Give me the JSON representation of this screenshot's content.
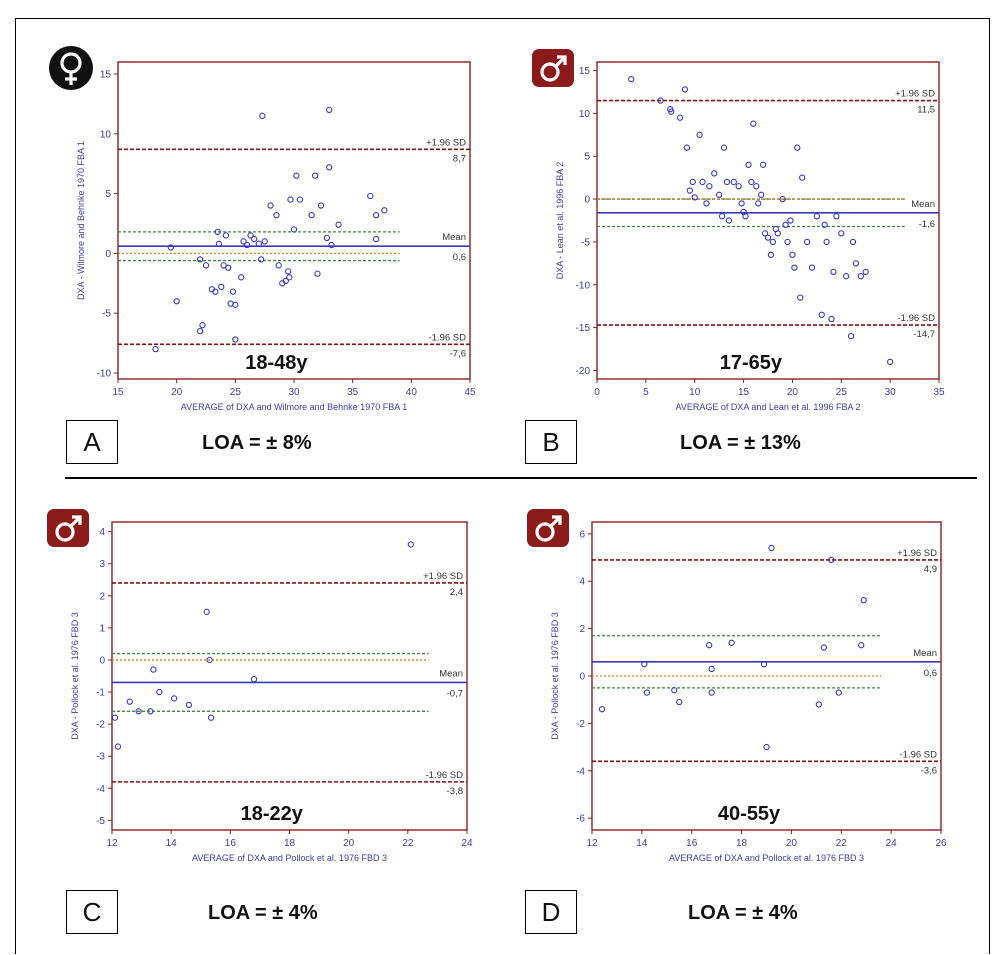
{
  "panels": [
    {
      "id": "A",
      "letter": "A",
      "loa": "LOA = ± 8%",
      "age": "18-48y",
      "sex_icon": "female-symbol-icon",
      "xlabel": "AVERAGE of DXA and Wilmore and Behnke 1970 FBA 1",
      "ylabel": "DXA - Wilmore and Behnke 1970 FBA 1",
      "xlim": [
        15,
        45
      ],
      "ylim": [
        -10.5,
        16
      ],
      "xticks": [
        15,
        20,
        25,
        30,
        35,
        40,
        45
      ],
      "yticks": [
        -10,
        -5,
        0,
        5,
        10,
        15
      ],
      "mean": 0.6,
      "upper": 8.7,
      "lower": -7.6,
      "upper_label": "+1.96 SD",
      "mean_label": "Mean",
      "lower_label": "-1.96 SD",
      "upper_value": "8,7",
      "mean_value": "0,6",
      "lower_value": "-7,6",
      "ci_upper": 1.8,
      "ci_lower": -0.6,
      "line_xmax": 39,
      "points": [
        [
          18.2,
          -8.0
        ],
        [
          19.5,
          0.5
        ],
        [
          20.0,
          -4.0
        ],
        [
          22.0,
          -6.5
        ],
        [
          22.2,
          -6.0
        ],
        [
          22.5,
          -1.0
        ],
        [
          22.0,
          -0.5
        ],
        [
          23.0,
          -3.0
        ],
        [
          23.3,
          -3.2
        ],
        [
          23.5,
          1.8
        ],
        [
          23.6,
          0.8
        ],
        [
          23.8,
          -2.8
        ],
        [
          24.0,
          -1.0
        ],
        [
          24.2,
          1.5
        ],
        [
          24.4,
          -1.2
        ],
        [
          24.6,
          -4.2
        ],
        [
          24.8,
          -3.2
        ],
        [
          25.0,
          -4.3
        ],
        [
          25.0,
          -7.2
        ],
        [
          25.5,
          -2.0
        ],
        [
          25.7,
          1.0
        ],
        [
          26.0,
          0.7
        ],
        [
          26.3,
          1.5
        ],
        [
          26.6,
          1.2
        ],
        [
          27.0,
          0.8
        ],
        [
          27.2,
          -0.5
        ],
        [
          27.3,
          11.5
        ],
        [
          27.5,
          1.0
        ],
        [
          28.0,
          4.0
        ],
        [
          28.5,
          3.2
        ],
        [
          28.7,
          -1.0
        ],
        [
          29.0,
          -2.5
        ],
        [
          29.3,
          -2.3
        ],
        [
          29.5,
          -1.5
        ],
        [
          29.6,
          -2.0
        ],
        [
          29.7,
          4.5
        ],
        [
          30.0,
          2.0
        ],
        [
          30.2,
          6.5
        ],
        [
          30.5,
          4.5
        ],
        [
          31.5,
          3.2
        ],
        [
          31.8,
          6.5
        ],
        [
          32.0,
          -1.7
        ],
        [
          32.3,
          4.0
        ],
        [
          32.8,
          1.3
        ],
        [
          33.0,
          12.0
        ],
        [
          33.0,
          7.2
        ],
        [
          33.2,
          0.7
        ],
        [
          33.8,
          2.4
        ],
        [
          36.5,
          4.8
        ],
        [
          37.0,
          3.2
        ],
        [
          37.7,
          3.6
        ],
        [
          37.0,
          1.2
        ]
      ]
    },
    {
      "id": "B",
      "letter": "B",
      "loa": "LOA = ± 13%",
      "age": "17-65y",
      "sex_icon": "male-symbol-icon",
      "xlabel": "AVERAGE of DXA and Lean et al. 1996 FBA 2",
      "ylabel": "DXA - Lean et al. 1996 FBA 2",
      "xlim": [
        0,
        35
      ],
      "ylim": [
        -21,
        16
      ],
      "xticks": [
        0,
        5,
        10,
        15,
        20,
        25,
        30,
        35
      ],
      "yticks": [
        -20,
        -15,
        -10,
        -5,
        0,
        5,
        10,
        15
      ],
      "mean": -1.6,
      "upper": 11.5,
      "lower": -14.7,
      "upper_label": "+1.96 SD",
      "mean_label": "Mean",
      "lower_label": "-1.96 SD",
      "upper_value": "11,5",
      "mean_value": "-1,6",
      "lower_value": "-14,7",
      "ci_upper": 0.0,
      "ci_lower": -3.2,
      "line_xmax": 31.5,
      "points": [
        [
          3.5,
          14.0
        ],
        [
          6.5,
          11.5
        ],
        [
          7.5,
          10.5
        ],
        [
          7.6,
          10.2
        ],
        [
          8.5,
          9.5
        ],
        [
          9.0,
          12.8
        ],
        [
          9.2,
          6.0
        ],
        [
          9.5,
          1.0
        ],
        [
          9.8,
          2.0
        ],
        [
          10.0,
          0.2
        ],
        [
          10.5,
          7.5
        ],
        [
          10.8,
          2.0
        ],
        [
          11.2,
          -0.5
        ],
        [
          11.5,
          1.5
        ],
        [
          12.0,
          3.0
        ],
        [
          12.5,
          0.5
        ],
        [
          12.8,
          -2.0
        ],
        [
          13.0,
          6.0
        ],
        [
          13.3,
          2.0
        ],
        [
          13.5,
          -2.5
        ],
        [
          14.0,
          2.0
        ],
        [
          14.5,
          1.5
        ],
        [
          14.8,
          -0.5
        ],
        [
          15.0,
          -1.5
        ],
        [
          15.2,
          -2.0
        ],
        [
          15.5,
          4.0
        ],
        [
          15.8,
          2.0
        ],
        [
          16.0,
          8.8
        ],
        [
          16.3,
          1.5
        ],
        [
          16.5,
          -0.5
        ],
        [
          16.8,
          0.5
        ],
        [
          17.0,
          4.0
        ],
        [
          17.2,
          -4.0
        ],
        [
          17.5,
          -4.5
        ],
        [
          17.8,
          -6.5
        ],
        [
          18.0,
          -5.0
        ],
        [
          18.3,
          -3.5
        ],
        [
          18.5,
          -4.0
        ],
        [
          19.0,
          0.0
        ],
        [
          19.3,
          -3.0
        ],
        [
          19.5,
          -5.0
        ],
        [
          19.8,
          -2.5
        ],
        [
          20.0,
          -6.5
        ],
        [
          20.2,
          -8.0
        ],
        [
          20.5,
          6.0
        ],
        [
          20.8,
          -11.5
        ],
        [
          21.0,
          2.5
        ],
        [
          21.5,
          -5.0
        ],
        [
          22.0,
          -8.0
        ],
        [
          22.5,
          -2.0
        ],
        [
          23.0,
          -13.5
        ],
        [
          23.3,
          -3.0
        ],
        [
          23.5,
          -5.0
        ],
        [
          24.0,
          -14.0
        ],
        [
          24.2,
          -8.5
        ],
        [
          24.5,
          -2.0
        ],
        [
          25.0,
          -4.0
        ],
        [
          25.5,
          -9.0
        ],
        [
          26.0,
          -16.0
        ],
        [
          26.2,
          -5.0
        ],
        [
          26.5,
          -7.5
        ],
        [
          27.0,
          -9.0
        ],
        [
          27.5,
          -8.5
        ],
        [
          30.0,
          -19.0
        ]
      ]
    },
    {
      "id": "C",
      "letter": "C",
      "loa": "LOA = ± 4%",
      "age": "18-22y",
      "sex_icon": "male-symbol-icon",
      "xlabel": "AVERAGE of DXA and Pollock et al. 1976 FBD 3",
      "ylabel": "DXA - Pollock et al. 1976 FBD 3",
      "xlim": [
        12,
        24
      ],
      "ylim": [
        -5.3,
        4.3
      ],
      "xticks": [
        12,
        14,
        16,
        18,
        20,
        22,
        24
      ],
      "yticks": [
        -5,
        -4,
        -3,
        -2,
        -1,
        0,
        1,
        2,
        3,
        4
      ],
      "mean": -0.7,
      "upper": 2.4,
      "lower": -3.8,
      "upper_label": "+1.96 SD",
      "mean_label": "Mean",
      "lower_label": "-1.96 SD",
      "upper_value": "2,4",
      "mean_value": "-0,7",
      "lower_value": "-3,8",
      "ci_upper": 0.2,
      "ci_lower": -1.6,
      "line_xmax": 22.7,
      "points": [
        [
          12.1,
          -1.8
        ],
        [
          12.2,
          -2.7
        ],
        [
          12.6,
          -1.3
        ],
        [
          12.9,
          -1.6
        ],
        [
          13.3,
          -1.6
        ],
        [
          13.4,
          -0.3
        ],
        [
          13.6,
          -1.0
        ],
        [
          14.1,
          -1.2
        ],
        [
          14.6,
          -1.4
        ],
        [
          15.2,
          1.5
        ],
        [
          15.3,
          0.0
        ],
        [
          15.35,
          -1.8
        ],
        [
          16.8,
          -0.6
        ],
        [
          22.1,
          3.6
        ]
      ]
    },
    {
      "id": "D",
      "letter": "D",
      "loa": "LOA = ± 4%",
      "age": "40-55y",
      "sex_icon": "male-symbol-icon",
      "xlabel": "AVERAGE of DXA and Pollock et al. 1976 FBD 3",
      "ylabel": "DXA - Pollock et al. 1976 FBD 3",
      "xlim": [
        12,
        26
      ],
      "ylim": [
        -6.5,
        6.5
      ],
      "xticks": [
        12,
        14,
        16,
        18,
        20,
        22,
        24,
        26
      ],
      "yticks": [
        -6,
        -4,
        -2,
        0,
        2,
        4,
        6
      ],
      "mean": 0.6,
      "upper": 4.9,
      "lower": -3.6,
      "upper_label": "+1.96 SD",
      "mean_label": "Mean",
      "lower_label": "-1.96 SD",
      "upper_value": "4,9",
      "mean_value": "0,6",
      "lower_value": "-3,6",
      "ci_upper": 1.7,
      "ci_lower": -0.5,
      "line_xmax": 23.6,
      "points": [
        [
          12.4,
          -1.4
        ],
        [
          14.1,
          0.5
        ],
        [
          14.2,
          -0.7
        ],
        [
          15.3,
          -0.6
        ],
        [
          15.5,
          -1.1
        ],
        [
          16.7,
          1.3
        ],
        [
          16.8,
          -0.7
        ],
        [
          16.8,
          0.3
        ],
        [
          17.6,
          1.4
        ],
        [
          18.9,
          0.5
        ],
        [
          19.0,
          -3.0
        ],
        [
          19.2,
          5.4
        ],
        [
          21.1,
          -1.2
        ],
        [
          21.3,
          1.2
        ],
        [
          21.6,
          4.9
        ],
        [
          21.9,
          -0.7
        ],
        [
          22.8,
          1.3
        ],
        [
          22.9,
          3.2
        ]
      ]
    }
  ],
  "colors": {
    "frame": "#8b1e1e",
    "axis_text": "#3d3aa8",
    "points": "#3535c8",
    "mean_line": "#3a3ab8",
    "sd_line": "#8b1010",
    "ci_line": "#3a8a3a",
    "zero_line": "#e07a20",
    "male_badge": "#8b1a1a",
    "female_badge": "#111111"
  },
  "chart_data": [
    {
      "type": "scatter",
      "age": "18-48y",
      "xlabel": "AVERAGE of DXA and Wilmore and Behnke 1970 FBA 1",
      "ylabel": "DXA - Wilmore and Behnke 1970 FBA 1",
      "xlim": [
        15,
        45
      ],
      "ylim": [
        -10.5,
        16
      ],
      "reference_lines": {
        "mean": 0.6,
        "upper_1_96_sd": 8.7,
        "lower_1_96_sd": -7.6
      },
      "annotation": "LOA = ± 8%"
    },
    {
      "type": "scatter",
      "age": "17-65y",
      "xlabel": "AVERAGE of DXA and Lean et al. 1996 FBA 2",
      "ylabel": "DXA - Lean et al. 1996 FBA 2",
      "xlim": [
        0,
        35
      ],
      "ylim": [
        -21,
        16
      ],
      "reference_lines": {
        "mean": -1.6,
        "upper_1_96_sd": 11.5,
        "lower_1_96_sd": -14.7
      },
      "annotation": "LOA = ± 13%"
    },
    {
      "type": "scatter",
      "age": "18-22y",
      "xlabel": "AVERAGE of DXA and Pollock et al. 1976 FBD 3",
      "ylabel": "DXA - Pollock et al. 1976 FBD 3",
      "xlim": [
        12,
        24
      ],
      "ylim": [
        -5.3,
        4.3
      ],
      "reference_lines": {
        "mean": -0.7,
        "upper_1_96_sd": 2.4,
        "lower_1_96_sd": -3.8
      },
      "annotation": "LOA = ± 4%"
    },
    {
      "type": "scatter",
      "age": "40-55y",
      "xlabel": "AVERAGE of DXA and Pollock et al. 1976 FBD 3",
      "ylabel": "DXA - Pollock et al. 1976 FBD 3",
      "xlim": [
        12,
        26
      ],
      "ylim": [
        -6.5,
        6.5
      ],
      "reference_lines": {
        "mean": 0.6,
        "upper_1_96_sd": 4.9,
        "lower_1_96_sd": -3.6
      },
      "annotation": "LOA = ± 4%"
    }
  ]
}
